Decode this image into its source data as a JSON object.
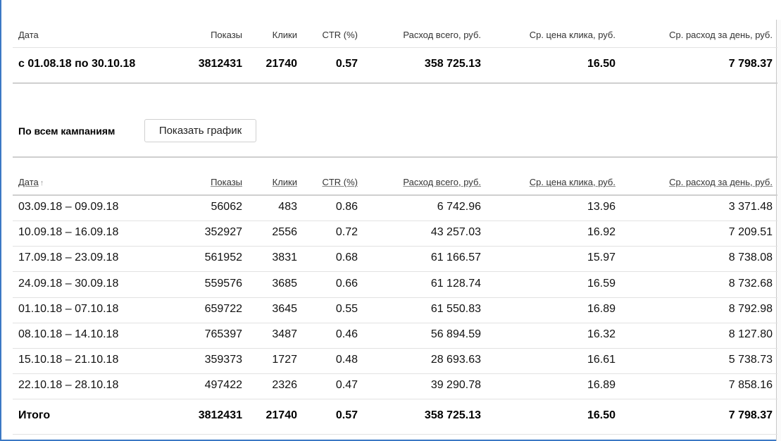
{
  "summary": {
    "headers": [
      "Дата",
      "Показы",
      "Клики",
      "CTR (%)",
      "Расход всего, руб.",
      "Ср. цена клика, руб.",
      "Ср. расход за день, руб."
    ],
    "row": [
      "с 01.08.18 по 30.10.18",
      "3812431",
      "21740",
      "0.57",
      "358 725.13",
      "16.50",
      "7 798.37"
    ]
  },
  "campaigns": {
    "label": "По всем кампаниям",
    "show_chart_button": "Показать график"
  },
  "table": {
    "headers": [
      "Дата",
      "Показы",
      "Клики",
      "CTR (%)",
      "Расход всего, руб.",
      "Ср. цена клика, руб.",
      "Ср. расход за день, руб."
    ],
    "sort_arrow": "↑",
    "rows": [
      [
        "03.09.18 – 09.09.18",
        "56062",
        "483",
        "0.86",
        "6 742.96",
        "13.96",
        "3 371.48"
      ],
      [
        "10.09.18 – 16.09.18",
        "352927",
        "2556",
        "0.72",
        "43 257.03",
        "16.92",
        "7 209.51"
      ],
      [
        "17.09.18 – 23.09.18",
        "561952",
        "3831",
        "0.68",
        "61 166.57",
        "15.97",
        "8 738.08"
      ],
      [
        "24.09.18 – 30.09.18",
        "559576",
        "3685",
        "0.66",
        "61 128.74",
        "16.59",
        "8 732.68"
      ],
      [
        "01.10.18 – 07.10.18",
        "659722",
        "3645",
        "0.55",
        "61 550.83",
        "16.89",
        "8 792.98"
      ],
      [
        "08.10.18 – 14.10.18",
        "765397",
        "3487",
        "0.46",
        "56 894.59",
        "16.32",
        "8 127.80"
      ],
      [
        "15.10.18 – 21.10.18",
        "359373",
        "1727",
        "0.48",
        "28 693.63",
        "16.61",
        "5 738.73"
      ],
      [
        "22.10.18 – 28.10.18",
        "497422",
        "2326",
        "0.47",
        "39 290.78",
        "16.89",
        "7 858.16"
      ]
    ],
    "total": [
      "Итого",
      "3812431",
      "21740",
      "0.57",
      "358 725.13",
      "16.50",
      "7 798.37"
    ]
  }
}
